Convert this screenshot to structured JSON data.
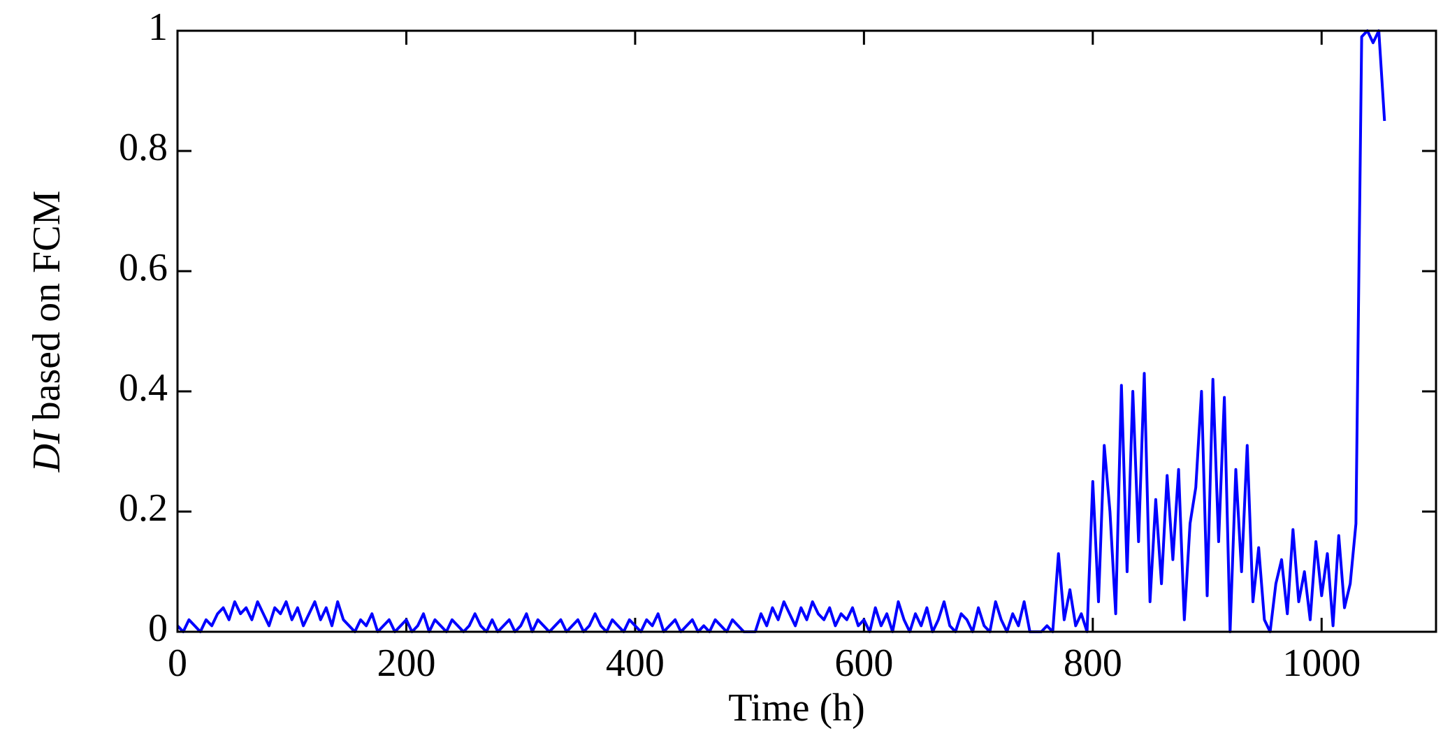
{
  "chart_data": {
    "type": "line",
    "ylabel_italic": "DI",
    "ylabel": " based on FCM",
    "xlabel": "Time (h)",
    "xlim": [
      0,
      1100
    ],
    "xticks": [
      0,
      200,
      400,
      600,
      800,
      1000
    ],
    "ylim": [
      0,
      1
    ],
    "yticks": [
      0,
      0.2,
      0.4,
      0.6,
      0.8,
      1
    ],
    "series": [
      {
        "color": "#0000ff",
        "x": [
          0,
          5,
          10,
          15,
          20,
          25,
          30,
          35,
          40,
          45,
          50,
          55,
          60,
          65,
          70,
          75,
          80,
          85,
          90,
          95,
          100,
          105,
          110,
          115,
          120,
          125,
          130,
          135,
          140,
          145,
          150,
          155,
          160,
          165,
          170,
          175,
          180,
          185,
          190,
          195,
          200,
          205,
          210,
          215,
          220,
          225,
          230,
          235,
          240,
          245,
          250,
          255,
          260,
          265,
          270,
          275,
          280,
          285,
          290,
          295,
          300,
          305,
          310,
          315,
          320,
          325,
          330,
          335,
          340,
          345,
          350,
          355,
          360,
          365,
          370,
          375,
          380,
          385,
          390,
          395,
          400,
          405,
          410,
          415,
          420,
          425,
          430,
          435,
          440,
          445,
          450,
          455,
          460,
          465,
          470,
          475,
          480,
          485,
          490,
          495,
          500,
          505,
          510,
          515,
          520,
          525,
          530,
          535,
          540,
          545,
          550,
          555,
          560,
          565,
          570,
          575,
          580,
          585,
          590,
          595,
          600,
          605,
          610,
          615,
          620,
          625,
          630,
          635,
          640,
          645,
          650,
          655,
          660,
          665,
          670,
          675,
          680,
          685,
          690,
          695,
          700,
          705,
          710,
          715,
          720,
          725,
          730,
          735,
          740,
          745,
          750,
          755,
          760,
          765,
          770,
          775,
          780,
          785,
          790,
          795,
          800,
          805,
          810,
          815,
          820,
          825,
          830,
          835,
          840,
          845,
          850,
          855,
          860,
          865,
          870,
          875,
          880,
          885,
          890,
          895,
          900,
          905,
          910,
          915,
          920,
          925,
          930,
          935,
          940,
          945,
          950,
          955,
          960,
          965,
          970,
          975,
          980,
          985,
          990,
          995,
          1000,
          1005,
          1010,
          1015,
          1020,
          1025,
          1030,
          1035,
          1040,
          1045,
          1050,
          1055
        ],
        "values": [
          0.01,
          0.0,
          0.02,
          0.01,
          0.0,
          0.02,
          0.01,
          0.03,
          0.04,
          0.02,
          0.05,
          0.03,
          0.04,
          0.02,
          0.05,
          0.03,
          0.01,
          0.04,
          0.03,
          0.05,
          0.02,
          0.04,
          0.01,
          0.03,
          0.05,
          0.02,
          0.04,
          0.01,
          0.05,
          0.02,
          0.01,
          0.0,
          0.02,
          0.01,
          0.03,
          0.0,
          0.01,
          0.02,
          0.0,
          0.01,
          0.02,
          0.0,
          0.01,
          0.03,
          0.0,
          0.02,
          0.01,
          0.0,
          0.02,
          0.01,
          0.0,
          0.01,
          0.03,
          0.01,
          0.0,
          0.02,
          0.0,
          0.01,
          0.02,
          0.0,
          0.01,
          0.03,
          0.0,
          0.02,
          0.01,
          0.0,
          0.01,
          0.02,
          0.0,
          0.01,
          0.02,
          0.0,
          0.01,
          0.03,
          0.01,
          0.0,
          0.02,
          0.01,
          0.0,
          0.02,
          0.01,
          0.0,
          0.02,
          0.01,
          0.03,
          0.0,
          0.01,
          0.02,
          0.0,
          0.01,
          0.02,
          0.0,
          0.01,
          0.0,
          0.02,
          0.01,
          0.0,
          0.02,
          0.01,
          0.0,
          0.0,
          0.0,
          0.03,
          0.01,
          0.04,
          0.02,
          0.05,
          0.03,
          0.01,
          0.04,
          0.02,
          0.05,
          0.03,
          0.02,
          0.04,
          0.01,
          0.03,
          0.02,
          0.04,
          0.01,
          0.02,
          0.0,
          0.04,
          0.01,
          0.03,
          0.0,
          0.05,
          0.02,
          0.0,
          0.03,
          0.01,
          0.04,
          0.0,
          0.02,
          0.05,
          0.01,
          0.0,
          0.03,
          0.02,
          0.0,
          0.04,
          0.01,
          0.0,
          0.05,
          0.02,
          0.0,
          0.03,
          0.01,
          0.05,
          0.0,
          0.0,
          0.0,
          0.01,
          0.0,
          0.13,
          0.02,
          0.07,
          0.01,
          0.03,
          0.0,
          0.25,
          0.05,
          0.31,
          0.2,
          0.03,
          0.41,
          0.1,
          0.4,
          0.15,
          0.43,
          0.05,
          0.22,
          0.08,
          0.26,
          0.12,
          0.27,
          0.02,
          0.18,
          0.24,
          0.4,
          0.06,
          0.42,
          0.15,
          0.39,
          0.0,
          0.27,
          0.1,
          0.31,
          0.05,
          0.14,
          0.02,
          0.0,
          0.08,
          0.12,
          0.03,
          0.17,
          0.05,
          0.1,
          0.02,
          0.15,
          0.06,
          0.13,
          0.01,
          0.16,
          0.04,
          0.08,
          0.18,
          0.99,
          1.0,
          0.98,
          1.0,
          0.85
        ]
      }
    ]
  }
}
